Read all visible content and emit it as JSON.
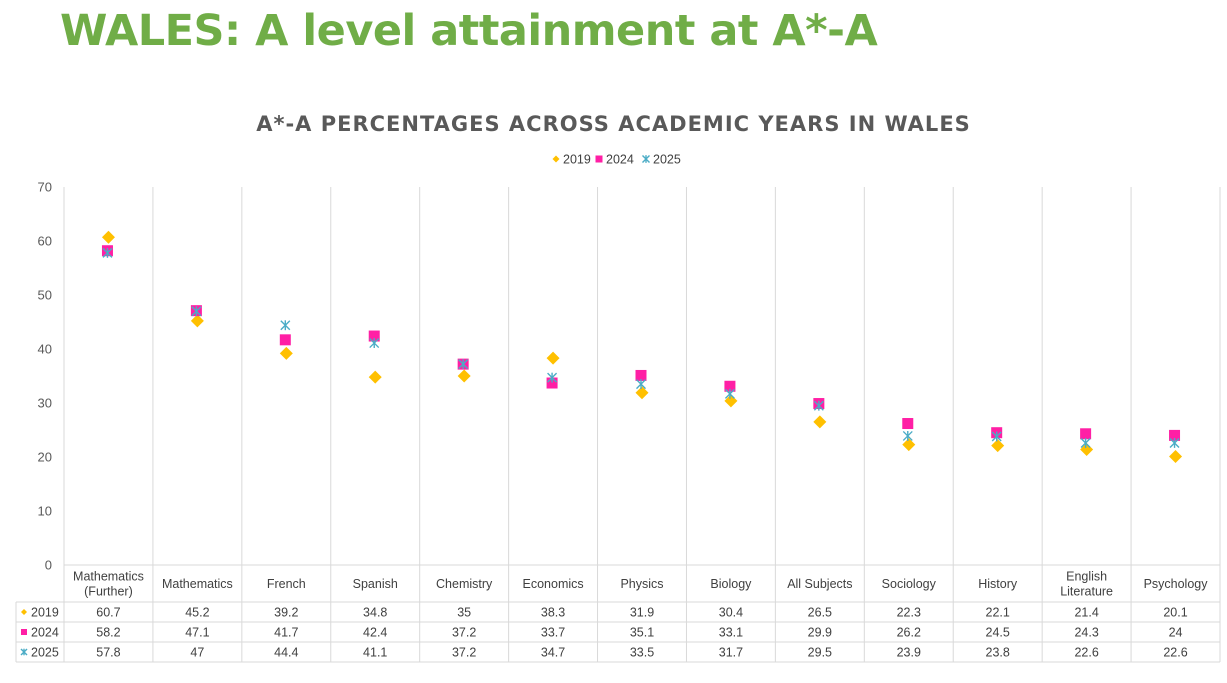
{
  "page": {
    "heading": "WALES: A level attainment at A*-A"
  },
  "chart_data": {
    "type": "scatter",
    "title": "A*-A PERCENTAGES ACROSS ACADEMIC YEARS IN WALES",
    "categories": [
      "Mathematics (Further)",
      "Mathematics",
      "French",
      "Spanish",
      "Chemistry",
      "Economics",
      "Physics",
      "Biology",
      "All Subjects",
      "Sociology",
      "History",
      "English Literature",
      "Psychology"
    ],
    "series": [
      {
        "name": "2019",
        "marker": "diamond",
        "color": "#ffc000",
        "values": [
          60.7,
          45.2,
          39.2,
          34.8,
          35,
          38.3,
          31.9,
          30.4,
          26.5,
          22.3,
          22.1,
          21.4,
          20.1
        ]
      },
      {
        "name": "2024",
        "marker": "square",
        "color": "#ff1fa5",
        "values": [
          58.2,
          47.1,
          41.7,
          42.4,
          37.2,
          33.7,
          35.1,
          33.1,
          29.9,
          26.2,
          24.5,
          24.3,
          24
        ]
      },
      {
        "name": "2025",
        "marker": "star",
        "color": "#4bacc6",
        "values": [
          57.8,
          47,
          44.4,
          41.1,
          37.2,
          34.7,
          33.5,
          31.7,
          29.5,
          23.9,
          23.8,
          22.6,
          22.6
        ]
      }
    ],
    "yticks": [
      0,
      10,
      20,
      30,
      40,
      50,
      60,
      70
    ],
    "ylim": [
      0,
      70
    ],
    "grid": "vertical",
    "legend": "top-center",
    "data_table": true
  }
}
